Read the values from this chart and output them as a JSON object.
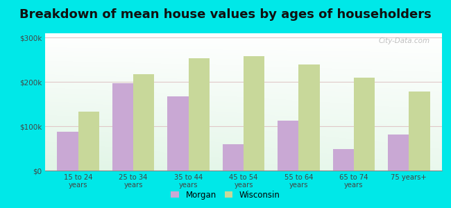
{
  "title": "Breakdown of mean house values by ages of householders",
  "categories": [
    "15 to 24\nyears",
    "25 to 34\nyears",
    "35 to 44\nyears",
    "45 to 54\nyears",
    "55 to 64\nyears",
    "65 to 74\nyears",
    "75 years+"
  ],
  "morgan_values": [
    88000,
    198000,
    168000,
    60000,
    112000,
    48000,
    82000
  ],
  "wisconsin_values": [
    133000,
    218000,
    253000,
    258000,
    240000,
    210000,
    178000
  ],
  "morgan_color": "#c9a8d4",
  "wisconsin_color": "#c8d89a",
  "background_color": "#00e8e8",
  "yticks": [
    0,
    100000,
    200000,
    300000
  ],
  "ytick_labels": [
    "$0",
    "$100k",
    "$200k",
    "$300k"
  ],
  "ylim": [
    0,
    310000
  ],
  "legend_morgan": "Morgan",
  "legend_wisconsin": "Wisconsin",
  "title_fontsize": 13,
  "bar_width": 0.38,
  "watermark": "City-Data.com"
}
